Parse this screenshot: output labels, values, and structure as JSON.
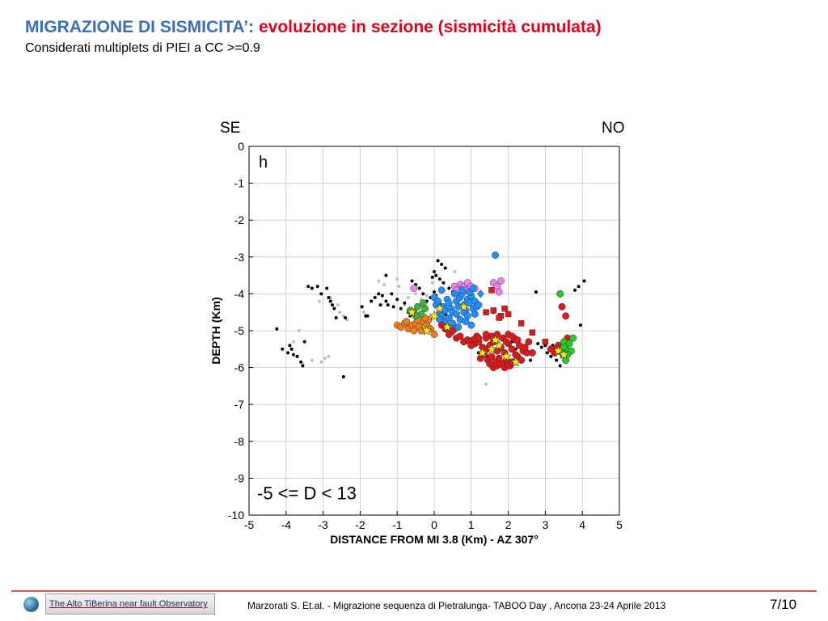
{
  "slide": {
    "title_main": "MIGRAZIONE DI SISMICITA’:",
    "title_sub": "evoluzione in sezione (sismicità cumulata)",
    "subtitle": "Considerati multiplets di PIEI a CC >=0.9",
    "label_left": "SE",
    "label_right": "NO"
  },
  "footer": {
    "logo_text": "The Alto TiBerina near fault Observatory",
    "citation": "Marzorati S.  Et.al. - Migrazione sequenza di Pietralunga- TABOO Day , Ancona 23-24 Aprile 2013",
    "page": "7/10"
  },
  "chart_data": {
    "type": "scatter",
    "panel_label": "h",
    "annotation": "-5 <= D < 13",
    "xlabel": "DISTANCE FROM MI 3.8 (Km) - AZ 307°",
    "ylabel": "DEPTH (Km)",
    "xlim": [
      -5,
      5
    ],
    "ylim": [
      -10,
      0
    ],
    "xticks": [
      "-5",
      "-4",
      "-3",
      "-2",
      "-1",
      "0",
      "1",
      "2",
      "3",
      "4",
      "5"
    ],
    "yticks": [
      "0",
      "-1",
      "-2",
      "-3",
      "-4",
      "-5",
      "-6",
      "-7",
      "-8",
      "-9",
      "-10"
    ],
    "grid": true,
    "series": [
      {
        "color": "#c0c0c0",
        "marker": "dot",
        "x": [
          -3.8,
          -3.65,
          -3.55,
          -3.3,
          -3.05,
          -2.95,
          -2.85,
          -2.6,
          -2.55,
          -2.45,
          -2.35,
          -1.5,
          -1.35,
          -1.0,
          -0.95,
          -0.7,
          -0.5,
          -0.35,
          -0.8,
          -0.2,
          -2.8,
          -3.1,
          -1.9,
          -0.05,
          0.55,
          1.4
        ],
        "y": [
          -5.3,
          -5.0,
          -5.9,
          -5.8,
          -5.85,
          -5.75,
          -5.7,
          -4.3,
          -4.5,
          -4.6,
          -4.7,
          -3.65,
          -3.75,
          -3.6,
          -3.8,
          -4.1,
          -4.0,
          -4.15,
          -4.3,
          -4.05,
          -4.1,
          -4.2,
          -4.5,
          -3.7,
          -3.4,
          -6.45
        ]
      },
      {
        "color": "#000000",
        "marker": "dot",
        "x": [
          -4.25,
          -4.1,
          -3.95,
          -3.9,
          -3.85,
          -3.8,
          -3.7,
          -3.6,
          -3.55,
          -3.5,
          -3.4,
          -3.3,
          -3.15,
          -3.05,
          -2.9,
          -2.85,
          -2.8,
          -2.75,
          -2.7,
          -2.65,
          -2.4,
          -1.95,
          -1.85,
          -1.8,
          -1.7,
          -1.6,
          -1.5,
          -1.4,
          -1.3,
          -1.25,
          -1.15,
          -1.1,
          -1.0,
          -0.9,
          -0.8,
          -0.7,
          -0.65,
          -0.6,
          -0.5,
          -0.4,
          -0.3,
          -0.2,
          -0.1,
          0.0,
          0.05,
          0.1,
          0.15,
          0.2,
          0.25,
          0.3,
          0.35,
          0.1,
          0.2,
          0.3,
          0.05,
          0.15,
          0.25,
          0.4,
          0.5,
          0.1,
          0.2,
          0.3,
          0.4,
          0.6,
          -1.3,
          -1.45,
          1.2,
          1.3,
          1.45,
          2.1,
          2.2,
          2.6,
          2.7,
          2.8,
          2.9,
          3.0,
          3.05,
          3.1,
          3.15,
          3.2,
          3.25,
          3.3,
          3.35,
          3.4,
          3.45,
          3.5,
          3.55,
          3.6,
          3.8,
          3.9,
          4.05,
          3.95,
          2.75,
          -0.05,
          0.0,
          -2.45,
          -0.15,
          1.6,
          1.8
        ],
        "y": [
          -4.95,
          -5.5,
          -5.6,
          -5.4,
          -5.5,
          -5.65,
          -5.7,
          -5.85,
          -5.95,
          -5.3,
          -3.8,
          -3.85,
          -3.8,
          -4.0,
          -3.85,
          -4.1,
          -4.2,
          -4.3,
          -4.4,
          -4.65,
          -4.65,
          -4.35,
          -4.6,
          -4.6,
          -4.2,
          -4.1,
          -4.0,
          -4.05,
          -4.2,
          -4.3,
          -4.0,
          -4.35,
          -4.15,
          -4.4,
          -4.25,
          -4.5,
          -4.6,
          -3.65,
          -3.75,
          -3.85,
          -4.0,
          -4.2,
          -4.1,
          -3.95,
          -4.05,
          -4.15,
          -4.25,
          -4.35,
          -4.45,
          -4.55,
          -4.6,
          -3.1,
          -3.2,
          -3.3,
          -3.5,
          -3.6,
          -3.7,
          -3.85,
          -3.95,
          -4.7,
          -4.8,
          -4.9,
          -5.0,
          -5.15,
          -3.5,
          -4.3,
          -5.6,
          -5.4,
          -5.7,
          -5.3,
          -5.5,
          -5.8,
          -5.6,
          -5.35,
          -5.45,
          -5.4,
          -5.6,
          -5.5,
          -5.7,
          -5.4,
          -5.55,
          -5.8,
          -5.6,
          -5.95,
          -5.7,
          -5.5,
          -5.85,
          -5.55,
          -3.9,
          -3.8,
          -3.65,
          -4.85,
          -3.95,
          -3.55,
          -3.4,
          -6.25,
          -4.8,
          -4.5,
          -4.6
        ]
      },
      {
        "color": "#ee82ee",
        "marker": "circle",
        "x": [
          -0.55,
          0.7,
          0.75,
          0.8,
          0.85,
          0.9,
          0.95,
          1.0,
          0.65,
          1.1,
          0.55,
          0.6,
          1.6,
          1.7,
          1.8,
          1.75
        ],
        "y": [
          -3.85,
          -3.75,
          -3.85,
          -3.8,
          -3.9,
          -3.7,
          -3.95,
          -3.8,
          -4.0,
          -3.85,
          -3.8,
          -3.9,
          -3.7,
          -3.8,
          -3.65,
          -3.95
        ]
      },
      {
        "color": "#1e90ff",
        "marker": "circle",
        "x": [
          0.0,
          0.05,
          0.1,
          0.15,
          0.2,
          0.25,
          0.3,
          0.35,
          0.4,
          0.45,
          0.5,
          0.55,
          0.6,
          0.65,
          0.7,
          0.75,
          0.8,
          0.85,
          0.9,
          0.95,
          1.0,
          1.05,
          1.1,
          1.15,
          1.2,
          0.3,
          0.4,
          0.5,
          0.6,
          0.7,
          0.8,
          0.9,
          1.0,
          0.2,
          0.35,
          0.55,
          0.75,
          0.95,
          1.1,
          0.15,
          0.45,
          0.65,
          0.85,
          1.05,
          1.65
        ],
        "y": [
          -4.1,
          -4.3,
          -4.2,
          -4.5,
          -4.6,
          -4.35,
          -4.45,
          -4.15,
          -4.25,
          -4.4,
          -4.5,
          -4.0,
          -4.2,
          -4.35,
          -4.1,
          -4.0,
          -4.3,
          -4.45,
          -4.15,
          -4.25,
          -4.05,
          -4.4,
          -4.2,
          -4.35,
          -4.3,
          -4.75,
          -4.65,
          -4.8,
          -4.55,
          -4.7,
          -4.5,
          -4.6,
          -4.85,
          -3.9,
          -4.9,
          -4.95,
          -3.9,
          -3.95,
          -4.55,
          -4.7,
          -5.05,
          -4.9,
          -4.75,
          -3.85,
          -2.95
        ]
      },
      {
        "color": "#ef7d1a",
        "marker": "circle",
        "x": [
          -1.0,
          -0.9,
          -0.8,
          -0.7,
          -0.6,
          -0.5,
          -0.4,
          -0.3,
          -0.2,
          -0.1,
          -0.75,
          -0.55,
          -0.35,
          -0.15,
          0.0,
          -0.25,
          -0.45
        ],
        "y": [
          -4.85,
          -4.9,
          -4.8,
          -4.95,
          -4.85,
          -4.8,
          -4.9,
          -4.75,
          -4.85,
          -4.95,
          -4.75,
          -5.0,
          -5.0,
          -4.7,
          -5.1,
          -4.65,
          -4.7
        ]
      },
      {
        "color": "#3cb43c",
        "marker": "circle",
        "x": [
          -0.65,
          -0.55,
          -0.45,
          -0.35,
          -0.25,
          -0.5,
          -0.3
        ],
        "y": [
          -4.45,
          -4.5,
          -4.35,
          -4.55,
          -4.4,
          -4.6,
          -4.25
        ]
      },
      {
        "color": "#dd1a1a",
        "marker": "circle",
        "x": [
          0.2,
          0.3,
          0.4,
          0.5,
          0.6,
          0.7,
          0.8,
          0.9,
          1.0,
          1.1,
          1.2,
          1.3,
          1.4,
          1.5,
          1.6,
          1.7,
          1.8,
          1.9,
          2.0,
          2.1,
          2.2,
          2.3,
          2.4,
          2.5,
          1.25,
          1.35,
          1.45,
          1.55,
          1.65,
          1.75,
          1.85,
          1.95,
          2.05,
          2.15,
          2.25,
          2.35,
          1.5,
          1.6,
          1.7,
          1.8,
          1.9,
          2.0,
          2.1,
          2.2,
          1.4,
          1.55,
          1.7,
          1.85,
          2.0,
          2.15,
          1.15,
          1.05,
          0.95,
          2.45,
          2.55,
          2.65,
          1.95,
          2.1,
          2.25,
          1.0,
          1.2,
          1.4
        ],
        "y": [
          -4.85,
          -4.95,
          -5.1,
          -5.0,
          -5.2,
          -5.15,
          -5.3,
          -5.25,
          -5.4,
          -5.35,
          -5.3,
          -5.45,
          -5.5,
          -5.4,
          -5.3,
          -5.55,
          -5.45,
          -5.6,
          -5.35,
          -5.5,
          -5.65,
          -5.4,
          -5.55,
          -5.6,
          -5.75,
          -5.65,
          -5.8,
          -5.7,
          -5.85,
          -5.75,
          -5.9,
          -5.8,
          -5.95,
          -5.85,
          -5.7,
          -5.8,
          -5.9,
          -6.0,
          -5.95,
          -5.9,
          -6.0,
          -5.95,
          -5.85,
          -5.25,
          -5.2,
          -5.15,
          -5.1,
          -5.2,
          -5.1,
          -5.2,
          -5.15,
          -5.25,
          -5.3,
          -5.45,
          -5.3,
          -5.6,
          -5.3,
          -5.15,
          -5.25,
          -5.4,
          -5.2,
          -5.1
        ]
      },
      {
        "color": "#dd1a1a",
        "marker": "square",
        "x": [
          1.4,
          1.6,
          1.8,
          1.9,
          2.0,
          2.35,
          2.65,
          3.0,
          3.2,
          1.55,
          1.75
        ],
        "y": [
          -4.5,
          -4.45,
          -4.6,
          -4.4,
          -4.55,
          -4.8,
          -5.05,
          -5.3,
          -5.5,
          -3.9,
          -4.65
        ]
      },
      {
        "color": "#dd1a1a",
        "marker": "circle",
        "x": [
          3.45,
          3.55,
          3.35,
          3.25,
          3.15,
          3.6
        ],
        "y": [
          -4.35,
          -4.6,
          -5.4,
          -5.6,
          -5.5,
          -5.2
        ]
      },
      {
        "color": "#22cc22",
        "marker": "circle",
        "x": [
          3.4,
          3.5,
          3.55,
          3.65,
          3.7,
          3.6,
          3.45,
          3.55,
          3.75,
          3.5
        ],
        "y": [
          -4.0,
          -5.3,
          -5.5,
          -5.35,
          -5.55,
          -5.65,
          -5.6,
          -5.8,
          -5.2,
          -5.45
        ]
      },
      {
        "color": "#ffee00",
        "marker": "star",
        "x": [
          -0.6,
          0.0,
          0.15,
          0.35,
          0.8,
          1.3,
          1.55,
          1.75,
          1.95,
          2.2,
          3.35,
          3.5,
          -0.2,
          1.65
        ],
        "y": [
          -4.5,
          -4.6,
          -4.4,
          -4.9,
          -4.35,
          -5.6,
          -5.5,
          -5.4,
          -5.7,
          -5.85,
          -5.55,
          -5.65,
          -5.0,
          -5.25
        ]
      },
      {
        "color": "#1e90ff",
        "marker": "diamond",
        "x": [
          1.25
        ],
        "y": [
          -4.0
        ]
      }
    ]
  }
}
